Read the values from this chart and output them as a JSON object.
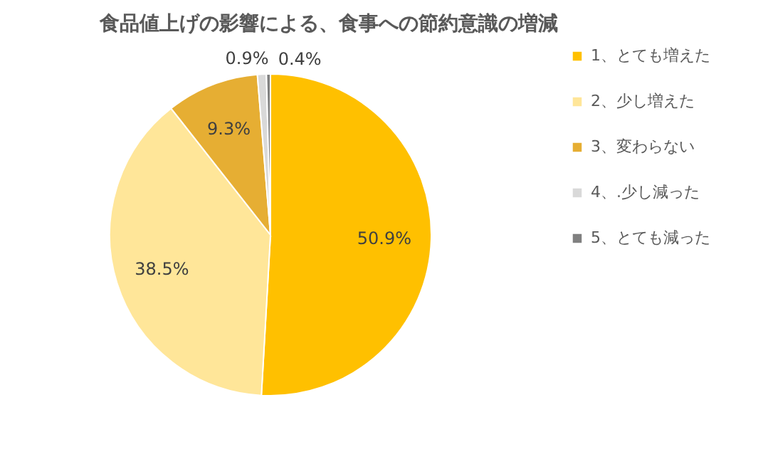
{
  "chart_data": {
    "type": "pie",
    "title": "食品値上げの影響による、食事への節約意識の増減",
    "categories": [
      "1、とても増えた",
      "2、少し増えた",
      "3、変わらない",
      "4、.少し減った",
      "5、とても減った"
    ],
    "values": [
      50.9,
      38.5,
      9.3,
      0.9,
      0.4
    ],
    "colors": [
      "#ffc000",
      "#ffe699",
      "#e6ae33",
      "#d9d9d9",
      "#808080"
    ],
    "value_labels": [
      "50.9%",
      "38.5%",
      "9.3%",
      "0.9%",
      "0.4%"
    ],
    "legend": "right"
  }
}
